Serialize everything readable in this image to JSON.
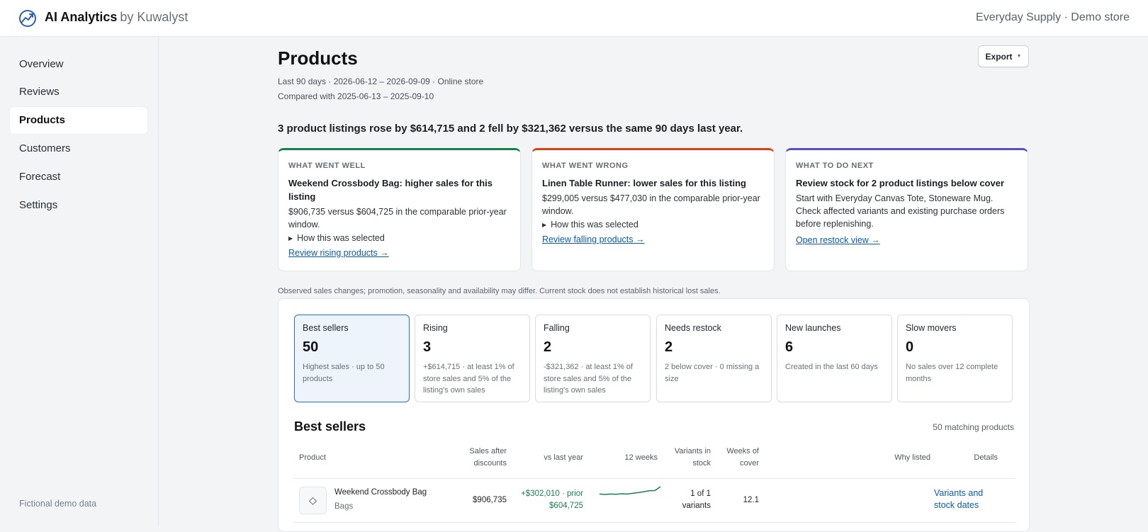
{
  "app": {
    "name": "AI Analytics",
    "by": "by Kuwalyst",
    "store": "Everyday Supply · Demo store",
    "icon": "analytics-chart-icon"
  },
  "sidebar": {
    "items": [
      {
        "label": "Overview"
      },
      {
        "label": "Reviews"
      },
      {
        "label": "Products",
        "active": true
      },
      {
        "label": "Customers"
      },
      {
        "label": "Forecast"
      },
      {
        "label": "Settings"
      }
    ],
    "footer": "Fictional demo data"
  },
  "page": {
    "title": "Products",
    "export_label": "Export",
    "meta_line1": "Last 90 days · 2026-06-12 – 2026-09-09 · Online store",
    "meta_line2": "Compared with 2025-06-13 – 2025-09-10",
    "headline": "3 product listings rose by $614,715 and 2 fell by $321,362 versus the same 90 days last year."
  },
  "cards": {
    "well": {
      "kicker": "WHAT WENT WELL",
      "title": "Weekend Crossbody Bag: higher sales for this listing",
      "body": "$906,735 versus $604,725 in the comparable prior-year window.",
      "disclosure": "How this was selected",
      "link": "Review rising products →",
      "color": "#1a7f4f"
    },
    "wrong": {
      "kicker": "WHAT WENT WRONG",
      "title": "Linen Table Runner: lower sales for this listing",
      "body": "$299,005 versus $477,030 in the comparable prior-year window.",
      "disclosure": "How this was selected",
      "link": "Review falling products →",
      "color": "#d4431a"
    },
    "next": {
      "kicker": "WHAT TO DO NEXT",
      "title": "Review stock for 2 product listings below cover",
      "body": "Start with Everyday Canvas Tote, Stoneware Mug. Check affected variants and existing purchase orders before replenishing.",
      "link": "Open restock view →",
      "color": "#5a4fc4"
    }
  },
  "disclaimer": "Observed sales changes; promotion, seasonality and availability may differ. Current stock does not establish historical lost sales.",
  "segments": [
    {
      "label": "Best sellers",
      "value": "50",
      "desc": "Highest sales · up to 50 products",
      "active": true
    },
    {
      "label": "Rising",
      "value": "3",
      "desc": "+$614,715 · at least 1% of store sales and 5% of the listing's own sales"
    },
    {
      "label": "Falling",
      "value": "2",
      "desc": "-$321,362 · at least 1% of store sales and 5% of the listing's own sales"
    },
    {
      "label": "Needs restock",
      "value": "2",
      "desc": "2 below cover · 0 missing a size"
    },
    {
      "label": "New launches",
      "value": "6",
      "desc": "Created in the last 60 days"
    },
    {
      "label": "Slow movers",
      "value": "0",
      "desc": "No sales over 12 complete months"
    }
  ],
  "table": {
    "title": "Best sellers",
    "count": "50 matching products",
    "headers": {
      "product": "Product",
      "sales": "Sales after discounts",
      "vs": "vs last year",
      "weeks": "12 weeks",
      "variants": "Variants in stock",
      "cover": "Weeks of cover",
      "why": "Why listed",
      "details": "Details"
    },
    "rows": [
      {
        "icon": "diamond-icon",
        "name": "Weekend Crossbody Bag",
        "category": "Bags",
        "sales": "$906,735",
        "vs": "+$302,010 · prior $604,725",
        "sparkline": [
          0.3,
          0.28,
          0.3,
          0.29,
          0.31,
          0.3,
          0.33,
          0.36,
          0.4,
          0.44,
          0.45,
          0.62
        ],
        "variants": "1 of 1 variants",
        "cover": "12.1",
        "why": "",
        "details": "Variants and stock dates"
      }
    ]
  }
}
